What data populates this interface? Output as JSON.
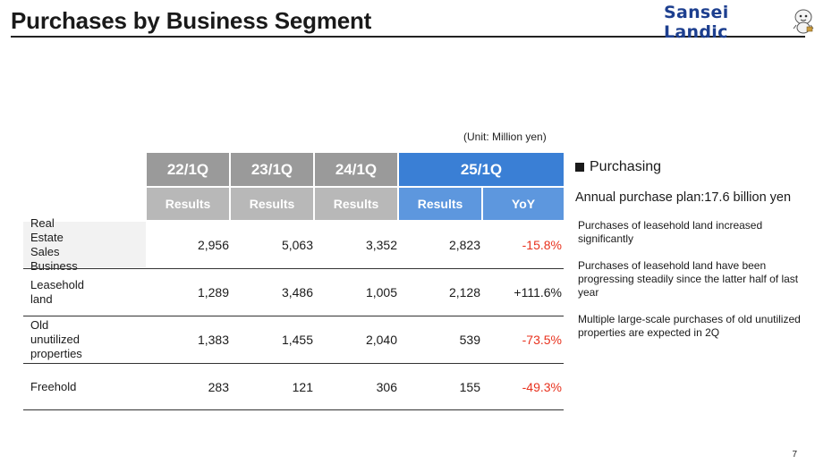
{
  "header": {
    "title": "Purchases by Business Segment",
    "logo_text": "Sansei Landic",
    "logo_color": "#1d3f8f"
  },
  "unit_note": "(Unit: Million yen)",
  "table": {
    "periods": [
      "22/1Q",
      "23/1Q",
      "24/1Q",
      "25/1Q"
    ],
    "subheaders": [
      "Results",
      "Results",
      "Results",
      "Results",
      "YoY"
    ],
    "rows": [
      {
        "label_lines": [
          "Real Estate Sales",
          "Business"
        ],
        "values": [
          "2,956",
          "5,063",
          "3,352",
          "2,823"
        ],
        "yoy": "-15.8%",
        "yoy_negative": true
      },
      {
        "label_lines": [
          "Leasehold land"
        ],
        "values": [
          "1,289",
          "3,486",
          "1,005",
          "2,128"
        ],
        "yoy": "+111.6%",
        "yoy_negative": false
      },
      {
        "label_lines": [
          "Old unutilized",
          "properties"
        ],
        "values": [
          "1,383",
          "1,455",
          "2,040",
          "539"
        ],
        "yoy": "-73.5%",
        "yoy_negative": true
      },
      {
        "label_lines": [
          "Freehold"
        ],
        "values": [
          "283",
          "121",
          "306",
          "155"
        ],
        "yoy": "-49.3%",
        "yoy_negative": true
      }
    ],
    "colors": {
      "gray_header": "#9a9a9a",
      "gray_subheader": "#b8b8b8",
      "blue_header": "#3a7fd5",
      "blue_subheader": "#5d97de",
      "negative": "#e8321e"
    }
  },
  "panel": {
    "heading": "Purchasing",
    "plan": "Annual purchase plan:17.6 billion yen",
    "notes": [
      "Purchases of leasehold land increased significantly",
      "Purchases of leasehold land have been progressing steadily since the latter half of last year",
      "Multiple large-scale purchases of old unutilized properties are expected in 2Q"
    ]
  },
  "page_number": "7"
}
